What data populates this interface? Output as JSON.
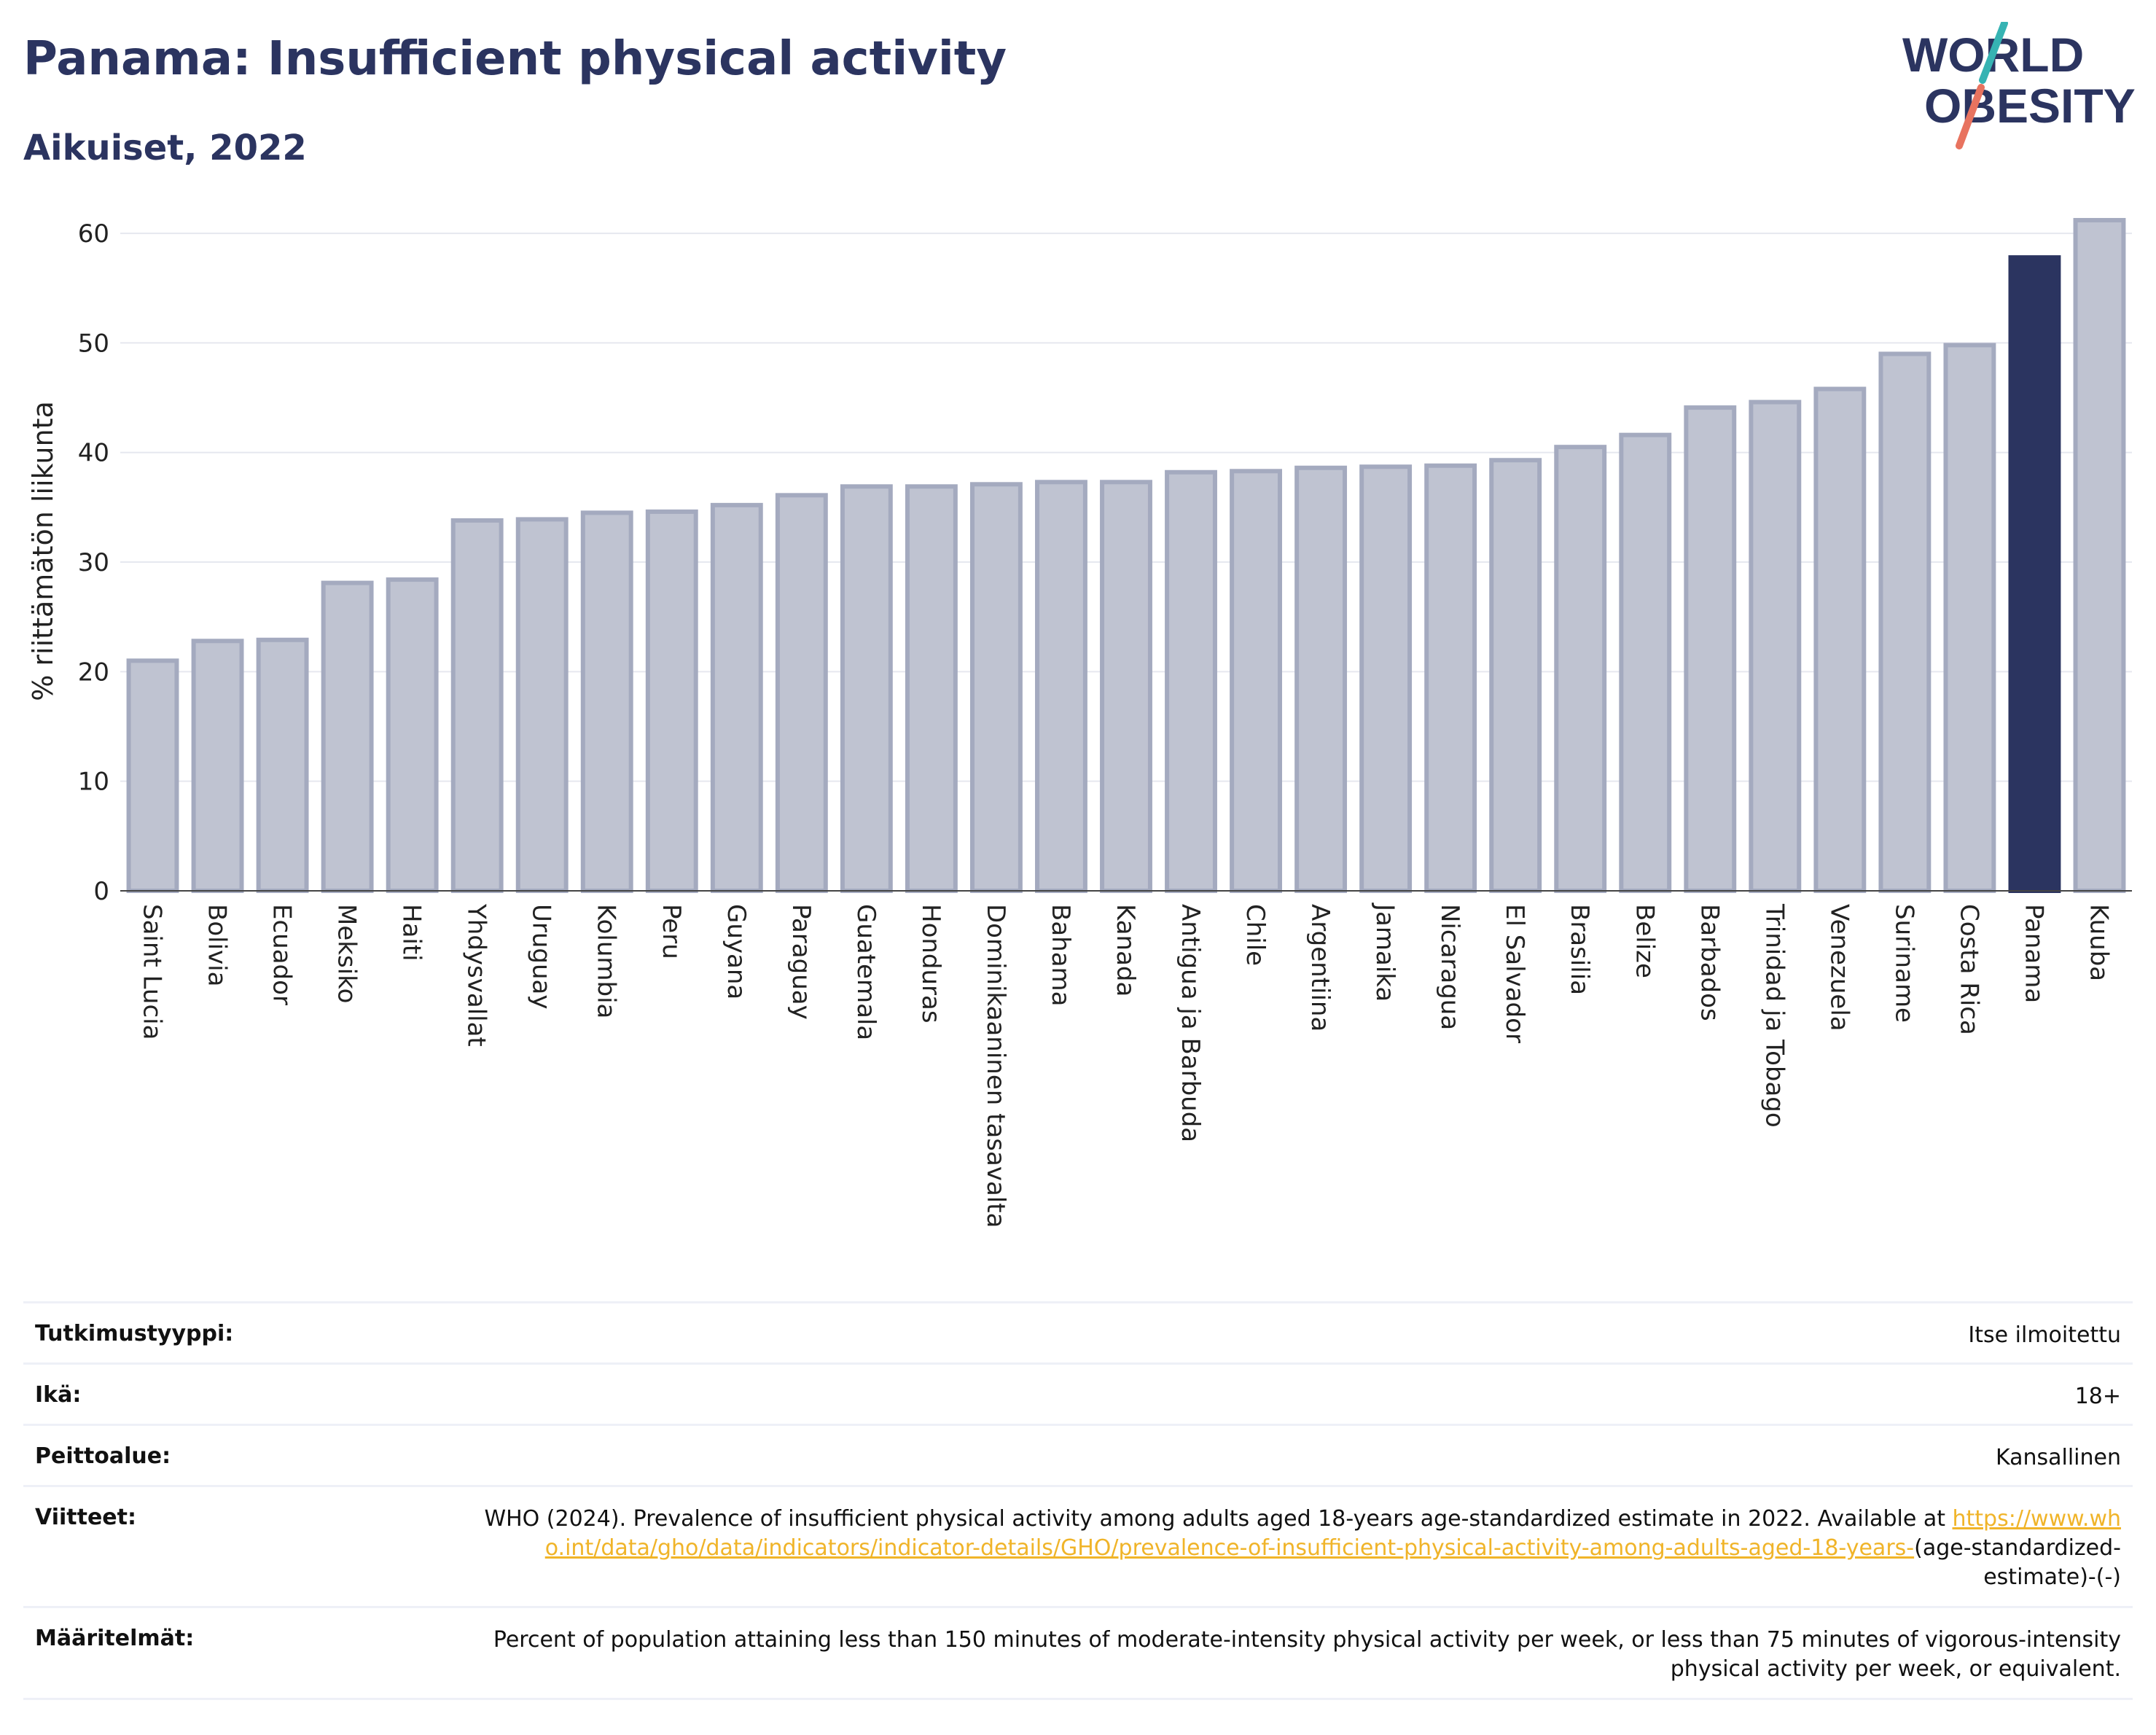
{
  "header": {
    "title": "Panama: Insufficient physical activity",
    "subtitle": "Aikuiset, 2022"
  },
  "logo": {
    "line1": "WORLD",
    "line2": "OBESITY"
  },
  "colors": {
    "highlight_bar": "#2b3460",
    "other_bar": "#bfc3d1",
    "other_bar_stroke": "#a4aabf",
    "title": "#2b3460",
    "link": "#f0b429",
    "grid": "#e6e8ef",
    "logo_teal": "#36b3b3",
    "logo_coral": "#e8735f"
  },
  "chart_data": {
    "type": "bar",
    "title": "Panama: Insufficient physical activity",
    "subtitle": "Aikuiset, 2022",
    "xlabel": "",
    "ylabel": "% riittämätön liikunta",
    "ylim": [
      0,
      62
    ],
    "yticks": [
      0,
      10,
      20,
      30,
      40,
      50,
      60
    ],
    "grid": true,
    "highlight": "Panama",
    "categories": [
      "Saint Lucia",
      "Bolivia",
      "Ecuador",
      "Meksiko",
      "Haiti",
      "Yhdysvallat",
      "Uruguay",
      "Kolumbia",
      "Peru",
      "Guyana",
      "Paraguay",
      "Guatemala",
      "Honduras",
      "Dominikaaninen tasavalta",
      "Bahama",
      "Kanada",
      "Antigua ja Barbuda",
      "Chile",
      "Argentiina",
      "Jamaika",
      "Nicaragua",
      "El Salvador",
      "Brasilia",
      "Belize",
      "Barbados",
      "Trinidad ja Tobago",
      "Venezuela",
      "Suriname",
      "Costa Rica",
      "Panama",
      "Kuuba"
    ],
    "values": [
      21.0,
      22.8,
      22.9,
      28.1,
      28.4,
      33.8,
      33.9,
      34.5,
      34.6,
      35.2,
      36.1,
      36.9,
      36.9,
      37.1,
      37.3,
      37.3,
      38.2,
      38.3,
      38.6,
      38.7,
      38.8,
      39.3,
      40.5,
      41.6,
      44.1,
      44.6,
      45.8,
      49.0,
      49.8,
      57.8,
      61.2
    ]
  },
  "info_table": {
    "rows": [
      {
        "label": "Tutkimustyyppi:",
        "value": "Itse ilmoitettu"
      },
      {
        "label": "Ikä:",
        "value": "18+"
      },
      {
        "label": "Peittoalue:",
        "value": "Kansallinen"
      },
      {
        "label": "Viitteet:",
        "value_text": "WHO (2024). Prevalence of insufficient physical activity among adults aged 18-years age-standardized estimate in 2022. Available at",
        "value_link": "https://www.who.int/data/gho/data/indicators/indicator-details/GHO/prevalence-of-insufficient-physical-activity-among-adults-aged-18-years-",
        "value_suffix": "(age-standardized-estimate)-(-)"
      },
      {
        "label": "Määritelmät:",
        "value": "Percent of population attaining less than 150 minutes of moderate-intensity physical activity per week, or less than 75 minutes of vigorous-intensity physical activity per week, or equivalent."
      }
    ]
  }
}
